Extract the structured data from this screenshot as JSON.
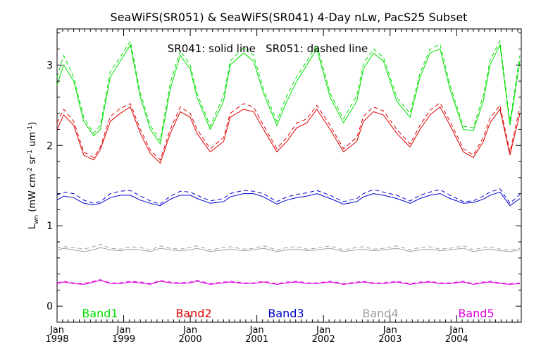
{
  "chart_data": {
    "type": "line",
    "title": "SeaWiFS(SR051) & SeaWiFS(SR041) 4-Day nLw, PacS25 Subset",
    "annotation": "SR041: solid line   SR051: dashed line",
    "ylabel": "L_wn (mW cm^-2 sr^-1 um^-1)",
    "ylabel_parts": {
      "main": "L",
      "sub": "wn",
      "open": " (mW cm",
      "e1": "-2",
      "mid1": " sr",
      "e2": "-1",
      "mid2": " um",
      "e3": "-1",
      "close": ")"
    },
    "xlim": [
      1998.0,
      2004.97
    ],
    "ylim": [
      -0.2,
      3.45
    ],
    "y_ticks": [
      0,
      1,
      2,
      3
    ],
    "y_tick_labels": [
      "0",
      "1",
      "2",
      "3"
    ],
    "x_ticks": [
      1998.0,
      1999.0,
      2000.0,
      2001.0,
      2002.0,
      2003.0,
      2004.0
    ],
    "x_tick_labels_top": [
      "Jan",
      "Jan",
      "Jan",
      "Jan",
      "Jan",
      "Jan",
      "Jan"
    ],
    "x_tick_labels_bottom": [
      "1998",
      "1999",
      "2000",
      "2001",
      "2002",
      "2003",
      "2004"
    ],
    "grid": false,
    "line_styles": {
      "SR041": "solid",
      "SR051": "dashed"
    },
    "series": [
      {
        "name": "Band1",
        "color": "#00e000",
        "x": [
          1998.0,
          1998.1,
          1998.25,
          1998.4,
          1998.55,
          1998.65,
          1998.8,
          1998.95,
          1999.1,
          1999.25,
          1999.4,
          1999.55,
          1999.7,
          1999.85,
          2000.0,
          2000.1,
          2000.3,
          2000.5,
          2000.6,
          2000.8,
          2000.95,
          2001.1,
          2001.3,
          2001.45,
          2001.6,
          2001.75,
          2001.9,
          2002.1,
          2002.3,
          2002.5,
          2002.6,
          2002.75,
          2002.9,
          2003.1,
          2003.3,
          2003.45,
          2003.6,
          2003.75,
          2003.9,
          2004.1,
          2004.25,
          2004.4,
          2004.5,
          2004.65,
          2004.8,
          2004.95
        ],
        "SR041": [
          2.75,
          3.0,
          2.8,
          2.3,
          2.12,
          2.2,
          2.85,
          3.05,
          3.25,
          2.6,
          2.2,
          2.02,
          2.7,
          3.12,
          2.95,
          2.6,
          2.2,
          2.55,
          3.0,
          3.15,
          3.05,
          2.65,
          2.25,
          2.55,
          2.8,
          3.0,
          3.2,
          2.6,
          2.28,
          2.55,
          2.95,
          3.15,
          3.05,
          2.55,
          2.35,
          2.85,
          3.15,
          3.2,
          2.7,
          2.2,
          2.18,
          2.55,
          3.0,
          3.25,
          2.25,
          3.05
        ],
        "SR051": [
          2.85,
          3.12,
          2.85,
          2.35,
          2.15,
          2.25,
          2.92,
          3.1,
          3.3,
          2.65,
          2.25,
          2.06,
          2.78,
          3.18,
          3.0,
          2.65,
          2.24,
          2.62,
          3.05,
          3.22,
          3.12,
          2.7,
          2.3,
          2.62,
          2.86,
          3.05,
          3.26,
          2.65,
          2.33,
          2.62,
          3.02,
          3.2,
          3.1,
          2.6,
          2.4,
          2.9,
          3.2,
          3.26,
          2.75,
          2.24,
          2.22,
          2.62,
          3.06,
          3.3,
          2.3,
          3.12
        ]
      },
      {
        "name": "Band2",
        "color": "#e00000",
        "x": [
          1998.0,
          1998.1,
          1998.25,
          1998.4,
          1998.55,
          1998.65,
          1998.8,
          1998.95,
          1999.1,
          1999.25,
          1999.4,
          1999.55,
          1999.7,
          1999.85,
          2000.0,
          2000.1,
          2000.3,
          2000.5,
          2000.6,
          2000.8,
          2000.95,
          2001.1,
          2001.3,
          2001.45,
          2001.6,
          2001.75,
          2001.9,
          2002.1,
          2002.3,
          2002.5,
          2002.6,
          2002.75,
          2002.9,
          2003.1,
          2003.3,
          2003.45,
          2003.6,
          2003.75,
          2003.9,
          2004.1,
          2004.25,
          2004.4,
          2004.5,
          2004.65,
          2004.8,
          2004.95
        ],
        "SR041": [
          2.2,
          2.38,
          2.25,
          1.88,
          1.82,
          1.95,
          2.3,
          2.4,
          2.48,
          2.15,
          1.9,
          1.78,
          2.15,
          2.42,
          2.35,
          2.15,
          1.92,
          2.05,
          2.35,
          2.45,
          2.42,
          2.2,
          1.92,
          2.05,
          2.22,
          2.28,
          2.45,
          2.2,
          1.92,
          2.05,
          2.3,
          2.42,
          2.38,
          2.15,
          1.98,
          2.2,
          2.38,
          2.48,
          2.25,
          1.92,
          1.85,
          2.05,
          2.28,
          2.45,
          1.88,
          2.4
        ],
        "SR051": [
          2.28,
          2.45,
          2.3,
          1.92,
          1.85,
          1.98,
          2.36,
          2.46,
          2.52,
          2.2,
          1.94,
          1.82,
          2.2,
          2.48,
          2.4,
          2.2,
          1.96,
          2.1,
          2.4,
          2.52,
          2.48,
          2.25,
          1.96,
          2.1,
          2.28,
          2.33,
          2.5,
          2.25,
          1.96,
          2.1,
          2.36,
          2.48,
          2.43,
          2.2,
          2.02,
          2.25,
          2.44,
          2.53,
          2.3,
          1.96,
          1.88,
          2.1,
          2.34,
          2.5,
          1.92,
          2.48
        ]
      },
      {
        "name": "Band3",
        "color": "#0000d0",
        "x": [
          1998.0,
          1998.1,
          1998.25,
          1998.4,
          1998.55,
          1998.65,
          1998.8,
          1998.95,
          1999.1,
          1999.25,
          1999.4,
          1999.55,
          1999.7,
          1999.85,
          2000.0,
          2000.1,
          2000.3,
          2000.5,
          2000.6,
          2000.8,
          2000.95,
          2001.1,
          2001.3,
          2001.45,
          2001.6,
          2001.75,
          2001.9,
          2002.1,
          2002.3,
          2002.5,
          2002.6,
          2002.75,
          2002.9,
          2003.1,
          2003.3,
          2003.45,
          2003.6,
          2003.75,
          2003.9,
          2004.1,
          2004.25,
          2004.4,
          2004.5,
          2004.65,
          2004.8,
          2004.95
        ],
        "SR041": [
          1.32,
          1.37,
          1.35,
          1.28,
          1.26,
          1.28,
          1.35,
          1.38,
          1.38,
          1.32,
          1.28,
          1.25,
          1.33,
          1.38,
          1.38,
          1.34,
          1.28,
          1.3,
          1.36,
          1.4,
          1.4,
          1.36,
          1.27,
          1.32,
          1.35,
          1.37,
          1.4,
          1.34,
          1.27,
          1.3,
          1.36,
          1.4,
          1.38,
          1.34,
          1.28,
          1.34,
          1.38,
          1.4,
          1.34,
          1.28,
          1.29,
          1.33,
          1.38,
          1.42,
          1.25,
          1.34
        ],
        "SR051": [
          1.38,
          1.42,
          1.4,
          1.32,
          1.28,
          1.3,
          1.4,
          1.43,
          1.44,
          1.37,
          1.31,
          1.27,
          1.37,
          1.43,
          1.42,
          1.38,
          1.31,
          1.34,
          1.4,
          1.44,
          1.43,
          1.4,
          1.3,
          1.36,
          1.39,
          1.41,
          1.44,
          1.38,
          1.3,
          1.34,
          1.4,
          1.45,
          1.42,
          1.38,
          1.31,
          1.38,
          1.42,
          1.45,
          1.38,
          1.3,
          1.31,
          1.37,
          1.42,
          1.46,
          1.28,
          1.39
        ]
      },
      {
        "name": "Band4",
        "color": "#a0a0a0",
        "x": [
          1998.0,
          1998.1,
          1998.25,
          1998.4,
          1998.55,
          1998.65,
          1998.8,
          1998.95,
          1999.1,
          1999.25,
          1999.4,
          1999.55,
          1999.7,
          1999.85,
          2000.0,
          2000.1,
          2000.3,
          2000.5,
          2000.6,
          2000.8,
          2000.95,
          2001.1,
          2001.3,
          2001.45,
          2001.6,
          2001.75,
          2001.9,
          2002.1,
          2002.3,
          2002.5,
          2002.6,
          2002.75,
          2002.9,
          2003.1,
          2003.3,
          2003.45,
          2003.6,
          2003.75,
          2003.9,
          2004.1,
          2004.25,
          2004.4,
          2004.5,
          2004.65,
          2004.8,
          2004.95
        ],
        "SR041": [
          0.7,
          0.72,
          0.7,
          0.68,
          0.7,
          0.73,
          0.7,
          0.69,
          0.71,
          0.7,
          0.68,
          0.72,
          0.7,
          0.69,
          0.7,
          0.72,
          0.68,
          0.7,
          0.71,
          0.69,
          0.7,
          0.72,
          0.68,
          0.7,
          0.71,
          0.69,
          0.7,
          0.72,
          0.68,
          0.7,
          0.71,
          0.69,
          0.7,
          0.72,
          0.68,
          0.7,
          0.71,
          0.69,
          0.7,
          0.72,
          0.68,
          0.7,
          0.71,
          0.69,
          0.68,
          0.7
        ],
        "SR051": [
          0.72,
          0.74,
          0.73,
          0.71,
          0.74,
          0.77,
          0.72,
          0.71,
          0.74,
          0.73,
          0.7,
          0.75,
          0.72,
          0.71,
          0.73,
          0.75,
          0.7,
          0.73,
          0.74,
          0.71,
          0.72,
          0.75,
          0.7,
          0.73,
          0.74,
          0.71,
          0.72,
          0.75,
          0.7,
          0.73,
          0.74,
          0.71,
          0.72,
          0.75,
          0.7,
          0.73,
          0.74,
          0.71,
          0.72,
          0.75,
          0.7,
          0.73,
          0.74,
          0.71,
          0.7,
          0.72
        ]
      },
      {
        "name": "Band5",
        "color": "#e000e0",
        "x": [
          1998.0,
          1998.1,
          1998.25,
          1998.4,
          1998.55,
          1998.65,
          1998.8,
          1998.95,
          1999.1,
          1999.25,
          1999.4,
          1999.55,
          1999.7,
          1999.85,
          2000.0,
          2000.1,
          2000.3,
          2000.5,
          2000.6,
          2000.8,
          2000.95,
          2001.1,
          2001.3,
          2001.45,
          2001.6,
          2001.75,
          2001.9,
          2002.1,
          2002.3,
          2002.5,
          2002.6,
          2002.75,
          2002.9,
          2003.1,
          2003.3,
          2003.45,
          2003.6,
          2003.75,
          2003.9,
          2004.1,
          2004.25,
          2004.4,
          2004.5,
          2004.65,
          2004.8,
          2004.95
        ],
        "SR041": [
          0.28,
          0.3,
          0.28,
          0.27,
          0.3,
          0.32,
          0.28,
          0.28,
          0.3,
          0.29,
          0.27,
          0.31,
          0.29,
          0.28,
          0.29,
          0.31,
          0.27,
          0.29,
          0.3,
          0.28,
          0.28,
          0.3,
          0.27,
          0.29,
          0.3,
          0.28,
          0.28,
          0.3,
          0.27,
          0.29,
          0.3,
          0.28,
          0.28,
          0.3,
          0.27,
          0.29,
          0.3,
          0.28,
          0.28,
          0.3,
          0.27,
          0.29,
          0.3,
          0.28,
          0.27,
          0.28
        ],
        "SR051": [
          0.29,
          0.31,
          0.29,
          0.28,
          0.31,
          0.33,
          0.29,
          0.29,
          0.31,
          0.3,
          0.28,
          0.32,
          0.3,
          0.29,
          0.3,
          0.32,
          0.28,
          0.3,
          0.31,
          0.29,
          0.29,
          0.31,
          0.28,
          0.3,
          0.31,
          0.29,
          0.29,
          0.31,
          0.28,
          0.3,
          0.31,
          0.29,
          0.29,
          0.31,
          0.28,
          0.3,
          0.31,
          0.29,
          0.29,
          0.31,
          0.28,
          0.3,
          0.31,
          0.29,
          0.28,
          0.29
        ]
      }
    ]
  }
}
